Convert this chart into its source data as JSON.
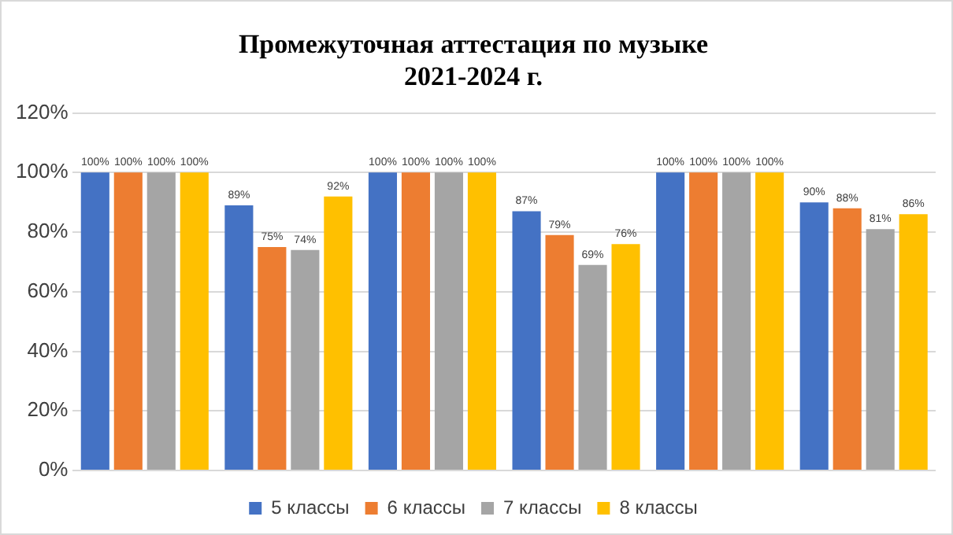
{
  "chart_data": {
    "type": "bar",
    "title": "Промежуточная аттестация по музыке",
    "subtitle": "2021-2024 г.",
    "categories": [
      null,
      null,
      null,
      null,
      null,
      null
    ],
    "series": [
      {
        "name": "5 классы",
        "color": "#4472c4",
        "values": [
          100,
          89,
          100,
          87,
          100,
          90
        ],
        "value_labels": [
          "100%",
          "89%",
          "100%",
          "87%",
          "100%",
          "90%"
        ]
      },
      {
        "name": "6 классы",
        "color": "#ed7d31",
        "values": [
          100,
          75,
          100,
          79,
          100,
          88
        ],
        "value_labels": [
          "100%",
          "75%",
          "100%",
          "79%",
          "100%",
          "88%"
        ]
      },
      {
        "name": "7 классы",
        "color": "#a5a5a5",
        "values": [
          100,
          74,
          100,
          69,
          100,
          81
        ],
        "value_labels": [
          "100%",
          "74%",
          "100%",
          "69%",
          "100%",
          "81%"
        ]
      },
      {
        "name": "8 классы",
        "color": "#ffc000",
        "values": [
          100,
          92,
          100,
          76,
          100,
          86
        ],
        "value_labels": [
          "100%",
          "92%",
          "100%",
          "76%",
          "100%",
          "86%"
        ]
      }
    ],
    "ylim": [
      0,
      120
    ],
    "yticks": [
      {
        "value": 0,
        "label": "0%"
      },
      {
        "value": 20,
        "label": "20%"
      },
      {
        "value": 40,
        "label": "40%"
      },
      {
        "value": 60,
        "label": "60%"
      },
      {
        "value": 80,
        "label": "80%"
      },
      {
        "value": 100,
        "label": "100%"
      },
      {
        "value": 120,
        "label": "120%"
      }
    ],
    "grid": "y",
    "legend": "bottom"
  }
}
